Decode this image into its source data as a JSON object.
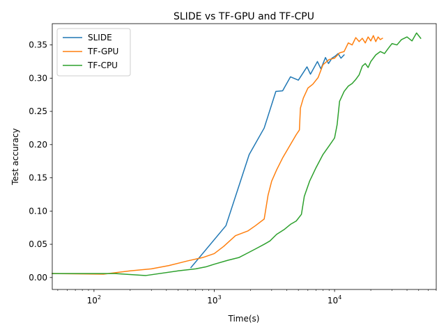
{
  "chart_data": {
    "type": "line",
    "title": "SLIDE vs TF-GPU and TF-CPU",
    "xlabel": "Time(s)",
    "ylabel": "Test accuracy",
    "xscale": "log",
    "xlim": [
      45,
      70000
    ],
    "ylim": [
      -0.018,
      0.382
    ],
    "x_ticks": [
      {
        "value": 100,
        "base": "10",
        "exp": "2"
      },
      {
        "value": 1000,
        "base": "10",
        "exp": "3"
      },
      {
        "value": 10000,
        "base": "10",
        "exp": "4"
      }
    ],
    "y_ticks": [
      {
        "value": 0.0,
        "label": "0.00"
      },
      {
        "value": 0.05,
        "label": "0.05"
      },
      {
        "value": 0.1,
        "label": "0.10"
      },
      {
        "value": 0.15,
        "label": "0.15"
      },
      {
        "value": 0.2,
        "label": "0.20"
      },
      {
        "value": 0.25,
        "label": "0.25"
      },
      {
        "value": 0.3,
        "label": "0.30"
      },
      {
        "value": 0.35,
        "label": "0.35"
      }
    ],
    "grid": false,
    "legend": "top-left",
    "series": [
      {
        "name": "SLIDE",
        "color": "#1f77b4",
        "x": [
          640,
          1250,
          1950,
          2600,
          3250,
          3700,
          4300,
          5000,
          5900,
          6300,
          7200,
          7700,
          8400,
          8900,
          9500,
          10100,
          10700,
          11300,
          12000
        ],
        "y": [
          0.015,
          0.078,
          0.185,
          0.225,
          0.28,
          0.281,
          0.302,
          0.297,
          0.317,
          0.306,
          0.325,
          0.314,
          0.331,
          0.322,
          0.33,
          0.333,
          0.337,
          0.33,
          0.335
        ]
      },
      {
        "name": "TF-GPU",
        "color": "#ff7f0e",
        "x": [
          45,
          120,
          200,
          300,
          420,
          600,
          800,
          1000,
          1200,
          1500,
          1900,
          2200,
          2600,
          2800,
          3000,
          3300,
          3700,
          4200,
          4800,
          5100,
          5200,
          5500,
          6000,
          6600,
          7300,
          8000,
          9000,
          10000,
          11000,
          12000,
          13000,
          14000,
          15000,
          16000,
          17000,
          18000,
          19000,
          20000,
          21000,
          22000,
          23000,
          24000,
          25000
        ],
        "y": [
          0.006,
          0.005,
          0.01,
          0.013,
          0.018,
          0.025,
          0.03,
          0.036,
          0.047,
          0.063,
          0.07,
          0.078,
          0.088,
          0.124,
          0.145,
          0.162,
          0.18,
          0.197,
          0.215,
          0.222,
          0.255,
          0.27,
          0.285,
          0.291,
          0.301,
          0.32,
          0.328,
          0.33,
          0.338,
          0.34,
          0.353,
          0.35,
          0.361,
          0.355,
          0.36,
          0.353,
          0.362,
          0.356,
          0.364,
          0.355,
          0.362,
          0.358,
          0.36
        ]
      },
      {
        "name": "TF-CPU",
        "color": "#2ca02c",
        "x": [
          45,
          150,
          270,
          500,
          700,
          850,
          1000,
          1300,
          1600,
          1900,
          2200,
          2600,
          2900,
          3300,
          3800,
          4300,
          4800,
          5300,
          5600,
          6200,
          7000,
          8000,
          9000,
          10000,
          10500,
          11000,
          12000,
          13000,
          14000,
          15000,
          16000,
          17000,
          18000,
          19000,
          20000,
          22000,
          24000,
          26000,
          28000,
          30000,
          33000,
          36000,
          40000,
          44000,
          48000,
          52000
        ],
        "y": [
          0.006,
          0.006,
          0.003,
          0.01,
          0.013,
          0.016,
          0.02,
          0.026,
          0.03,
          0.037,
          0.043,
          0.05,
          0.055,
          0.065,
          0.072,
          0.08,
          0.085,
          0.095,
          0.122,
          0.145,
          0.165,
          0.185,
          0.198,
          0.21,
          0.23,
          0.265,
          0.28,
          0.288,
          0.292,
          0.298,
          0.305,
          0.318,
          0.322,
          0.316,
          0.325,
          0.335,
          0.34,
          0.337,
          0.345,
          0.352,
          0.35,
          0.358,
          0.362,
          0.356,
          0.368,
          0.36
        ]
      }
    ]
  }
}
